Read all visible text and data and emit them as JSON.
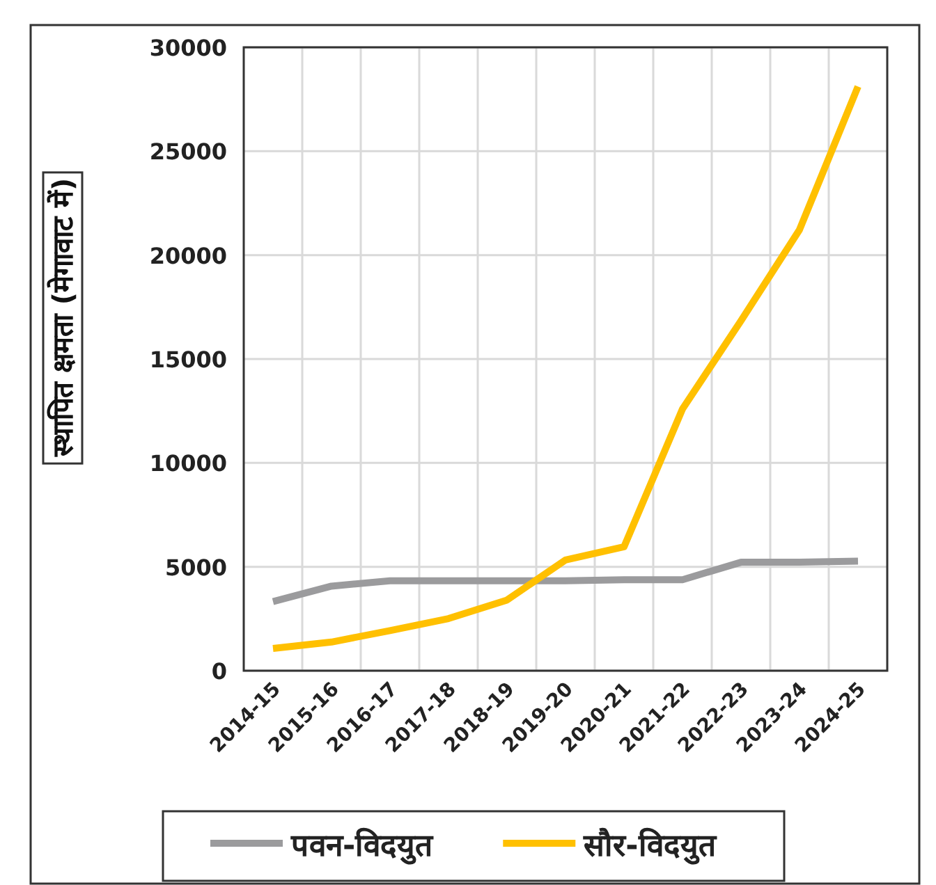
{
  "chart_data": {
    "type": "line",
    "ylabel": "स्थापित क्षमता (मेगावाट में)",
    "categories": [
      "2014-15",
      "2015-16",
      "2016-17",
      "2017-18",
      "2018-19",
      "2019-20",
      "2020-21",
      "2021-22",
      "2022-23",
      "2023-24",
      "2024-25"
    ],
    "series": [
      {
        "name": "पवन-विदयुत",
        "color": "#9b9b9d",
        "values": [
          3330,
          4070,
          4330,
          4330,
          4330,
          4330,
          4380,
          4380,
          5220,
          5220,
          5270
        ]
      },
      {
        "name": "सौर-विदयुत",
        "color": "#ffc000",
        "values": [
          1070,
          1380,
          1930,
          2510,
          3400,
          5330,
          5960,
          12600,
          16840,
          21220,
          28110
        ]
      }
    ],
    "ylim": [
      0,
      30000
    ],
    "yticks": [
      0,
      5000,
      10000,
      15000,
      20000,
      25000,
      30000
    ],
    "grid": true,
    "legend": "bottom",
    "line_style": "solid",
    "marker": "none"
  }
}
